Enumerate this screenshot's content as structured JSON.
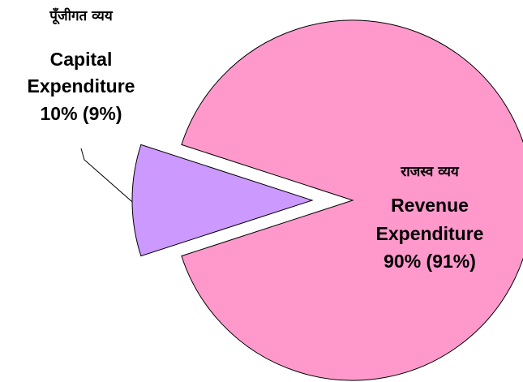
{
  "chart_data": {
    "type": "pie",
    "categories": [
      "Capital Expenditure",
      "Revenue Expenditure"
    ],
    "categories_hindi": [
      "पूँजीगत व्यय",
      "राजस्व व्यय"
    ],
    "values": [
      10,
      90
    ],
    "value_labels": [
      "10% (9%)",
      "90% (91%)"
    ],
    "colors": [
      "#cc99ff",
      "#ff99cc"
    ],
    "exploded": [
      true,
      false
    ]
  }
}
